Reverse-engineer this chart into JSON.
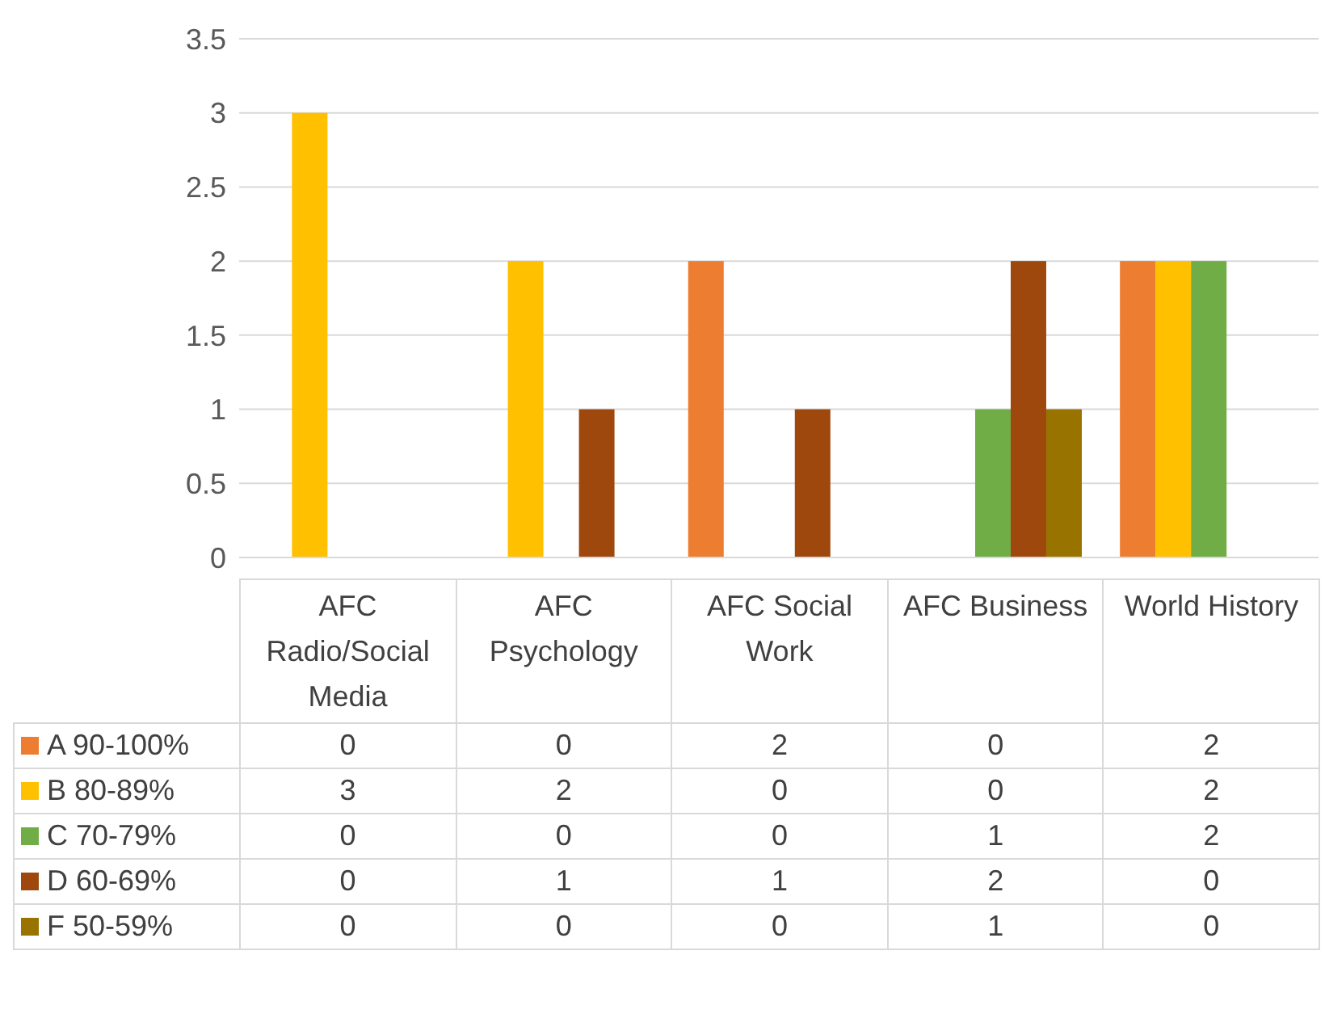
{
  "chart_data": {
    "type": "bar",
    "categories": [
      "AFC Radio/Social Media",
      "AFC Psychology",
      "AFC Social Work",
      "AFC Business",
      "World History"
    ],
    "series": [
      {
        "name": "A 90-100%",
        "color": "#ed7d31",
        "values": [
          0,
          0,
          2,
          0,
          2
        ]
      },
      {
        "name": "B 80-89%",
        "color": "#ffc000",
        "values": [
          3,
          2,
          0,
          0,
          2
        ]
      },
      {
        "name": "C 70-79%",
        "color": "#70ad47",
        "values": [
          0,
          0,
          0,
          1,
          2
        ]
      },
      {
        "name": "D 60-69%",
        "color": "#9e480e",
        "values": [
          0,
          1,
          1,
          2,
          0
        ]
      },
      {
        "name": "F 50-59%",
        "color": "#997300",
        "values": [
          0,
          0,
          0,
          1,
          0
        ]
      }
    ],
    "ylim": [
      0,
      3.5
    ],
    "yticks": [
      0,
      0.5,
      1,
      1.5,
      2,
      2.5,
      3,
      3.5
    ],
    "grid": "y",
    "legend": "bottom",
    "data_labels": true
  }
}
